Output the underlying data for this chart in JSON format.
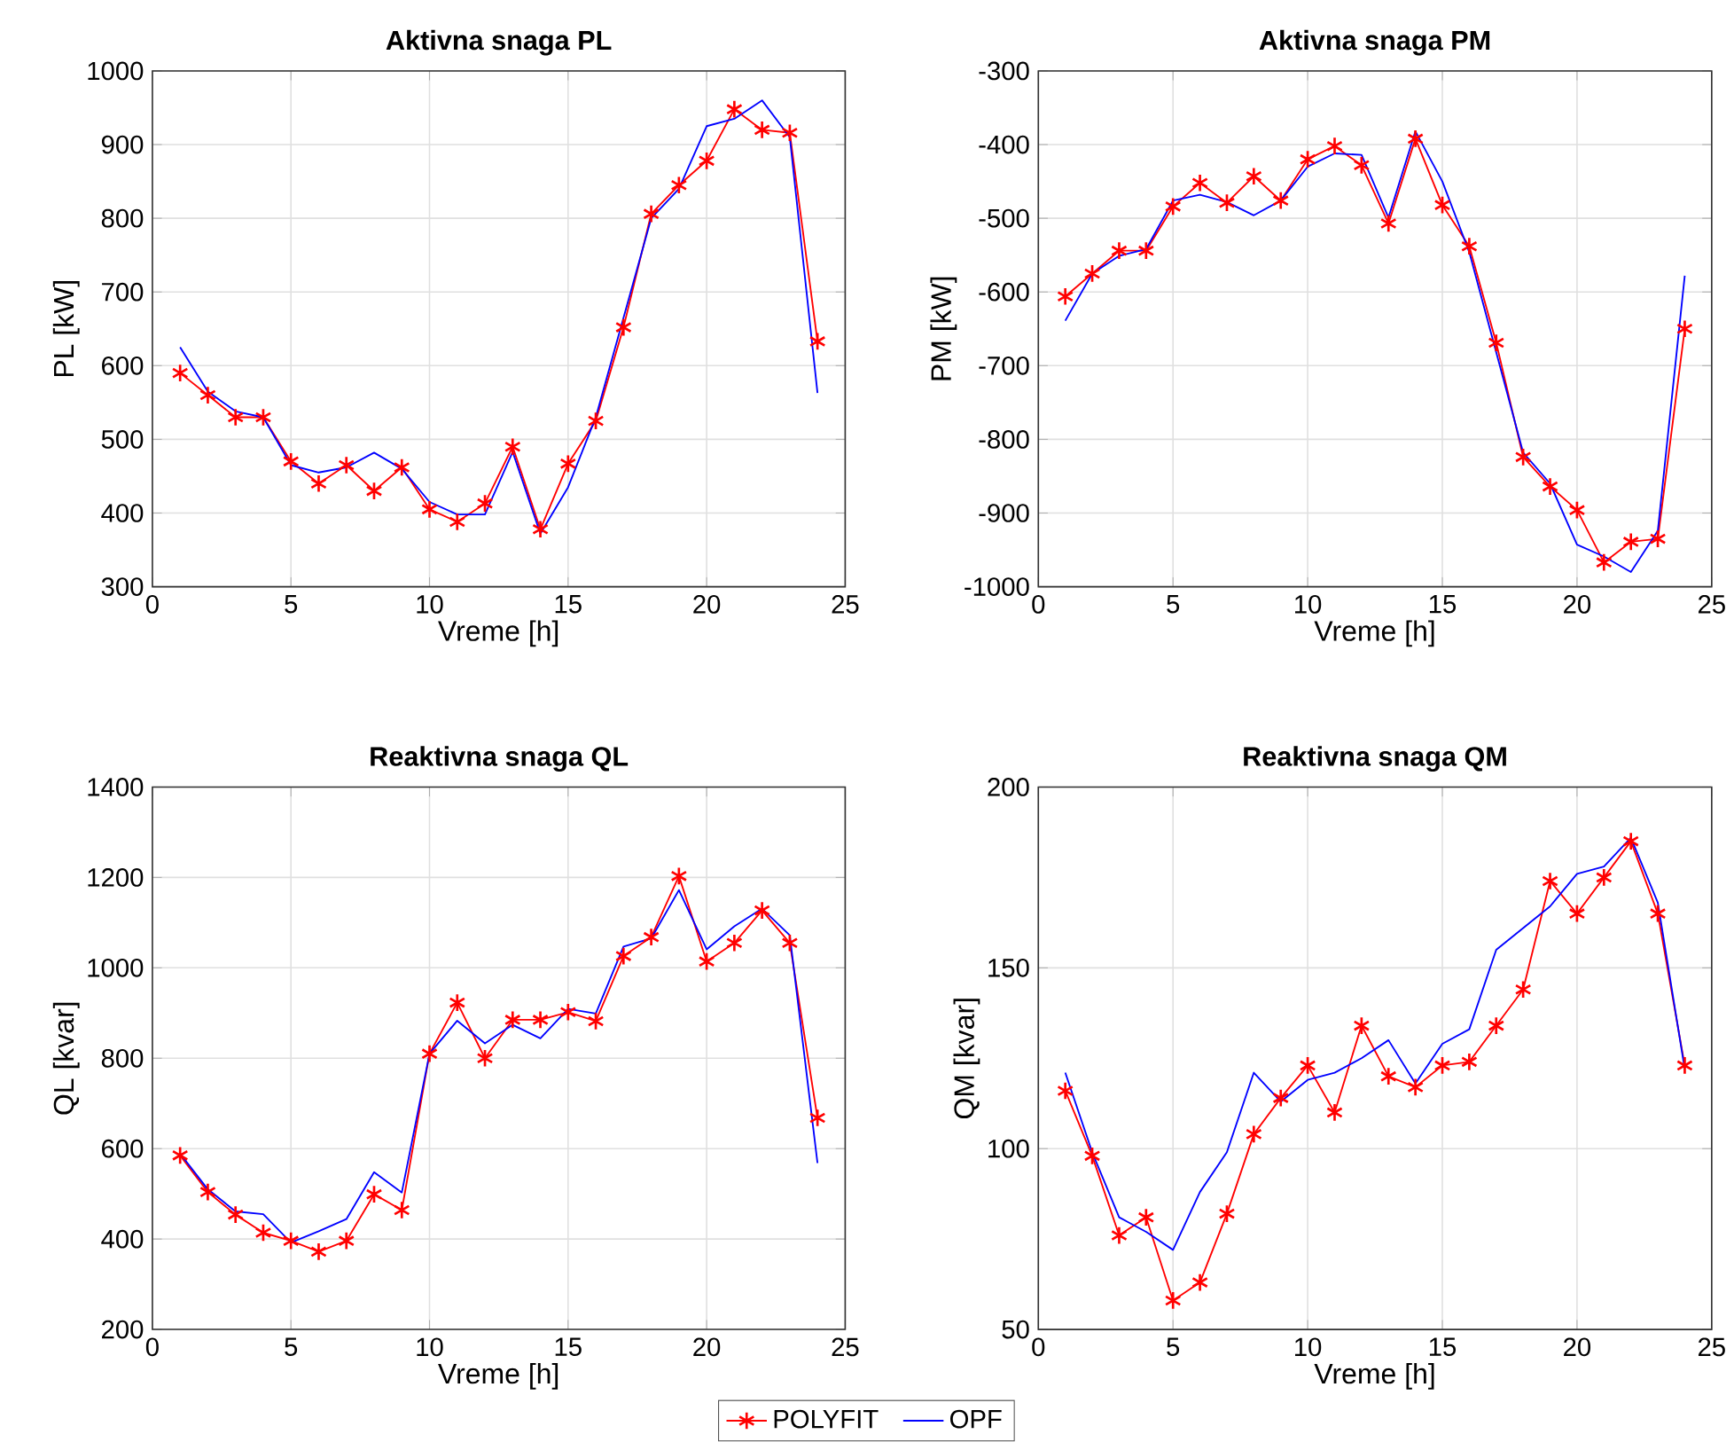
{
  "chart_data": [
    {
      "type": "line",
      "title": "Aktivna snaga PL",
      "xlabel": "Vreme [h]",
      "ylabel": "PL [kW]",
      "x": [
        1,
        2,
        3,
        4,
        5,
        6,
        7,
        8,
        9,
        10,
        11,
        12,
        13,
        14,
        15,
        16,
        17,
        18,
        19,
        20,
        21,
        22,
        23,
        24
      ],
      "xlim": [
        0,
        25
      ],
      "xticks": [
        0,
        5,
        10,
        15,
        20,
        25
      ],
      "ylim": [
        300,
        1000
      ],
      "yticks": [
        300,
        400,
        500,
        600,
        700,
        800,
        900,
        1000
      ],
      "grid": true,
      "series": [
        {
          "color": "#ff0000",
          "marker": "cross",
          "line_style": "solid",
          "values": [
            590,
            560,
            530,
            530,
            470,
            440,
            465,
            430,
            462,
            405,
            388,
            413,
            490,
            378,
            467,
            525,
            652,
            806,
            845,
            878,
            948,
            920,
            916,
            633
          ]
        },
        {
          "color": "#0000ff",
          "marker": "none",
          "line_style": "solid",
          "values": [
            625,
            565,
            538,
            530,
            465,
            455,
            462,
            482,
            460,
            415,
            398,
            398,
            483,
            372,
            435,
            530,
            665,
            800,
            840,
            925,
            935,
            960,
            910,
            563
          ]
        }
      ]
    },
    {
      "type": "line",
      "title": "Aktivna snaga PM",
      "xlabel": "Vreme [h]",
      "ylabel": "PM [kW]",
      "x": [
        1,
        2,
        3,
        4,
        5,
        6,
        7,
        8,
        9,
        10,
        11,
        12,
        13,
        14,
        15,
        16,
        17,
        18,
        19,
        20,
        21,
        22,
        23,
        24
      ],
      "xlim": [
        0,
        25
      ],
      "xticks": [
        0,
        5,
        10,
        15,
        20,
        25
      ],
      "ylim": [
        -1000,
        -300
      ],
      "yticks": [
        -1000,
        -900,
        -800,
        -700,
        -600,
        -500,
        -400,
        -300
      ],
      "grid": true,
      "series": [
        {
          "color": "#ff0000",
          "marker": "cross",
          "line_style": "solid",
          "values": [
            -606,
            -575,
            -544,
            -544,
            -484,
            -452,
            -479,
            -443,
            -476,
            -420,
            -402,
            -428,
            -507,
            -392,
            -482,
            -538,
            -669,
            -824,
            -864,
            -896,
            -967,
            -939,
            -935,
            -650
          ]
        },
        {
          "color": "#0000ff",
          "marker": "none",
          "line_style": "solid",
          "values": [
            -639,
            -575,
            -551,
            -542,
            -476,
            -468,
            -478,
            -496,
            -476,
            -430,
            -412,
            -414,
            -499,
            -382,
            -450,
            -546,
            -682,
            -818,
            -860,
            -943,
            -959,
            -980,
            -924,
            -578
          ]
        }
      ]
    },
    {
      "type": "line",
      "title": "Reaktivna snaga QL",
      "xlabel": "Vreme [h]",
      "ylabel": "QL [kvar]",
      "x": [
        1,
        2,
        3,
        4,
        5,
        6,
        7,
        8,
        9,
        10,
        11,
        12,
        13,
        14,
        15,
        16,
        17,
        18,
        19,
        20,
        21,
        22,
        23,
        24
      ],
      "xlim": [
        0,
        25
      ],
      "xticks": [
        0,
        5,
        10,
        15,
        20,
        25
      ],
      "ylim": [
        200,
        1400
      ],
      "yticks": [
        200,
        400,
        600,
        800,
        1000,
        1200,
        1400
      ],
      "grid": true,
      "series": [
        {
          "color": "#ff0000",
          "marker": "cross",
          "line_style": "solid",
          "values": [
            585,
            504,
            454,
            414,
            396,
            372,
            396,
            499,
            464,
            810,
            923,
            800,
            885,
            885,
            902,
            882,
            1026,
            1068,
            1203,
            1014,
            1055,
            1127,
            1055,
            668
          ]
        },
        {
          "color": "#0000ff",
          "marker": "none",
          "line_style": "solid",
          "values": [
            589,
            510,
            461,
            455,
            392,
            417,
            444,
            548,
            503,
            810,
            883,
            833,
            874,
            844,
            909,
            899,
            1047,
            1065,
            1172,
            1041,
            1092,
            1131,
            1072,
            568
          ]
        }
      ]
    },
    {
      "type": "line",
      "title": "Reaktivna snaga QM",
      "xlabel": "Vreme [h]",
      "ylabel": "QM [kvar]",
      "x": [
        1,
        2,
        3,
        4,
        5,
        6,
        7,
        8,
        9,
        10,
        11,
        12,
        13,
        14,
        15,
        16,
        17,
        18,
        19,
        20,
        21,
        22,
        23,
        24
      ],
      "xlim": [
        0,
        25
      ],
      "xticks": [
        0,
        5,
        10,
        15,
        20,
        25
      ],
      "ylim": [
        50,
        200
      ],
      "yticks": [
        50,
        100,
        150,
        200
      ],
      "grid": true,
      "legend": "bottom",
      "series": [
        {
          "name": "POLYFIT",
          "color": "#ff0000",
          "marker": "cross",
          "line_style": "solid",
          "values": [
            116,
            98,
            76,
            81,
            58,
            63,
            82,
            104,
            114,
            123,
            110,
            134,
            120,
            117,
            123,
            124,
            134,
            144,
            174,
            165,
            175,
            185,
            165,
            123
          ]
        },
        {
          "name": "OPF",
          "color": "#0000ff",
          "marker": "none",
          "line_style": "solid",
          "values": [
            121,
            99,
            81,
            77,
            72,
            88,
            99,
            121,
            113,
            119,
            121,
            125,
            130,
            118,
            129,
            133,
            155,
            161,
            167,
            176,
            178,
            186,
            168,
            122
          ]
        }
      ]
    }
  ]
}
